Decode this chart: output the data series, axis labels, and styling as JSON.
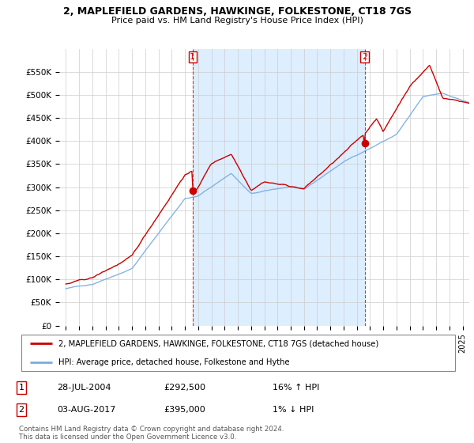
{
  "title1": "2, MAPLEFIELD GARDENS, HAWKINGE, FOLKESTONE, CT18 7GS",
  "title2": "Price paid vs. HM Land Registry's House Price Index (HPI)",
  "legend_label1": "2, MAPLEFIELD GARDENS, HAWKINGE, FOLKESTONE, CT18 7GS (detached house)",
  "legend_label2": "HPI: Average price, detached house, Folkestone and Hythe",
  "footnote": "Contains HM Land Registry data © Crown copyright and database right 2024.\nThis data is licensed under the Open Government Licence v3.0.",
  "table_rows": [
    {
      "num": "1",
      "date": "28-JUL-2004",
      "price": "£292,500",
      "change": "16% ↑ HPI"
    },
    {
      "num": "2",
      "date": "03-AUG-2017",
      "price": "£395,000",
      "change": "1% ↓ HPI"
    }
  ],
  "marker1_x": 2004.58,
  "marker1_y": 292500,
  "marker2_x": 2017.59,
  "marker2_y": 395000,
  "color_red": "#cc0000",
  "color_blue": "#7aace0",
  "color_shade": "#ddeeff",
  "ylim_min": 0,
  "ylim_max": 600000,
  "xlim_min": 1994.5,
  "xlim_max": 2025.5,
  "yticks": [
    0,
    50000,
    100000,
    150000,
    200000,
    250000,
    300000,
    350000,
    400000,
    450000,
    500000,
    550000
  ],
  "ytick_labels": [
    "£0",
    "£50K",
    "£100K",
    "£150K",
    "£200K",
    "£250K",
    "£300K",
    "£350K",
    "£400K",
    "£450K",
    "£500K",
    "£550K"
  ],
  "xtick_years": [
    1995,
    1996,
    1997,
    1998,
    1999,
    2000,
    2001,
    2002,
    2003,
    2004,
    2005,
    2006,
    2007,
    2008,
    2009,
    2010,
    2011,
    2012,
    2013,
    2014,
    2015,
    2016,
    2017,
    2018,
    2019,
    2020,
    2021,
    2022,
    2023,
    2024,
    2025
  ]
}
